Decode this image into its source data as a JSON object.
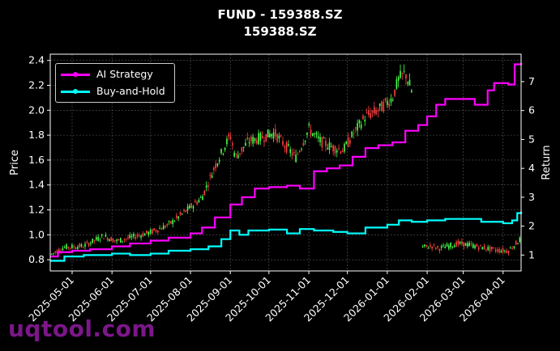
{
  "title": "FUND - 159388.SZ",
  "subtitle": "159388.SZ",
  "watermark": "uqtool.com",
  "colors": {
    "background": "#000000",
    "up_candle": "#4cff4c",
    "down_candle": "#ff4040",
    "ai_strategy": "#ff00ff",
    "buy_and_hold": "#00ffff",
    "grid": "#555555"
  },
  "chart_data": {
    "type": "line",
    "ylabel_left": "Price",
    "ylabel_right": "Return",
    "left_ylim": [
      0.71,
      2.45
    ],
    "right_ylim": [
      0.45,
      7.95
    ],
    "left_ticks": [
      "0.8",
      "1.0",
      "1.2",
      "1.4",
      "1.6",
      "1.8",
      "2.0",
      "2.2",
      "2.4"
    ],
    "right_ticks": [
      "1",
      "2",
      "3",
      "4",
      "5",
      "6",
      "7"
    ],
    "x_ticks": [
      "2025-05-01",
      "2025-06-01",
      "2025-07-01",
      "2025-08-01",
      "2025-09-01",
      "2025-10-01",
      "2025-11-01",
      "2025-12-01",
      "2026-01-01",
      "2026-02-01",
      "2026-03-01",
      "2026-04-01"
    ],
    "x_range": [
      "2025-04-14",
      "2026-04-15"
    ],
    "grid": true,
    "legend_position": "top-left",
    "series": [
      {
        "name": "AI Strategy",
        "color": "#ff00ff",
        "axis": "right",
        "points": [
          [
            "2025-04-14",
            0.95
          ],
          [
            "2025-04-20",
            1.1
          ],
          [
            "2025-05-01",
            1.15
          ],
          [
            "2025-05-15",
            1.2
          ],
          [
            "2025-06-01",
            1.3
          ],
          [
            "2025-06-15",
            1.4
          ],
          [
            "2025-07-01",
            1.5
          ],
          [
            "2025-07-15",
            1.6
          ],
          [
            "2025-08-01",
            1.75
          ],
          [
            "2025-08-10",
            1.95
          ],
          [
            "2025-08-20",
            2.3
          ],
          [
            "2025-09-01",
            2.75
          ],
          [
            "2025-09-10",
            3.0
          ],
          [
            "2025-09-20",
            3.3
          ],
          [
            "2025-10-01",
            3.35
          ],
          [
            "2025-10-15",
            3.4
          ],
          [
            "2025-10-25",
            3.3
          ],
          [
            "2025-11-05",
            3.9
          ],
          [
            "2025-11-15",
            4.0
          ],
          [
            "2025-11-25",
            4.1
          ],
          [
            "2025-12-05",
            4.4
          ],
          [
            "2025-12-15",
            4.7
          ],
          [
            "2025-12-25",
            4.8
          ],
          [
            "2026-01-05",
            4.9
          ],
          [
            "2026-01-15",
            5.3
          ],
          [
            "2026-01-25",
            5.5
          ],
          [
            "2026-02-01",
            5.8
          ],
          [
            "2026-02-08",
            6.2
          ],
          [
            "2026-02-15",
            6.4
          ],
          [
            "2026-03-01",
            6.4
          ],
          [
            "2026-03-10",
            6.2
          ],
          [
            "2026-03-20",
            6.7
          ],
          [
            "2026-03-25",
            6.95
          ],
          [
            "2026-04-05",
            6.9
          ],
          [
            "2026-04-10",
            7.6
          ],
          [
            "2026-04-15",
            7.65
          ]
        ]
      },
      {
        "name": "Buy-and-Hold",
        "color": "#00ffff",
        "axis": "right",
        "points": [
          [
            "2025-04-14",
            0.8
          ],
          [
            "2025-04-25",
            0.95
          ],
          [
            "2025-05-10",
            1.0
          ],
          [
            "2025-06-01",
            1.05
          ],
          [
            "2025-06-15",
            1.0
          ],
          [
            "2025-07-01",
            1.05
          ],
          [
            "2025-07-15",
            1.15
          ],
          [
            "2025-08-01",
            1.2
          ],
          [
            "2025-08-15",
            1.3
          ],
          [
            "2025-08-25",
            1.55
          ],
          [
            "2025-09-01",
            1.85
          ],
          [
            "2025-09-08",
            1.7
          ],
          [
            "2025-09-15",
            1.85
          ],
          [
            "2025-10-01",
            1.88
          ],
          [
            "2025-10-15",
            1.75
          ],
          [
            "2025-10-25",
            1.9
          ],
          [
            "2025-11-05",
            1.85
          ],
          [
            "2025-11-20",
            1.8
          ],
          [
            "2025-12-01",
            1.75
          ],
          [
            "2025-12-15",
            1.95
          ],
          [
            "2026-01-01",
            2.05
          ],
          [
            "2026-01-10",
            2.2
          ],
          [
            "2026-01-20",
            2.15
          ],
          [
            "2026-02-01",
            2.2
          ],
          [
            "2026-02-15",
            2.25
          ],
          [
            "2026-03-01",
            2.25
          ],
          [
            "2026-03-15",
            2.15
          ],
          [
            "2026-04-01",
            2.1
          ],
          [
            "2026-04-08",
            2.2
          ],
          [
            "2026-04-12",
            2.45
          ],
          [
            "2026-04-15",
            2.5
          ]
        ]
      },
      {
        "name": "Price",
        "axis": "left",
        "style": "candlestick",
        "points": [
          [
            "2025-04-14",
            0.84
          ],
          [
            "2025-04-25",
            0.9
          ],
          [
            "2025-05-10",
            0.91
          ],
          [
            "2025-05-25",
            0.99
          ],
          [
            "2025-06-05",
            0.95
          ],
          [
            "2025-06-20",
            0.99
          ],
          [
            "2025-07-01",
            1.02
          ],
          [
            "2025-07-15",
            1.08
          ],
          [
            "2025-08-01",
            1.22
          ],
          [
            "2025-08-10",
            1.3
          ],
          [
            "2025-08-20",
            1.55
          ],
          [
            "2025-09-01",
            1.8
          ],
          [
            "2025-09-05",
            1.62
          ],
          [
            "2025-09-15",
            1.75
          ],
          [
            "2025-09-25",
            1.78
          ],
          [
            "2025-10-05",
            1.82
          ],
          [
            "2025-10-15",
            1.7
          ],
          [
            "2025-10-22",
            1.62
          ],
          [
            "2025-11-01",
            1.85
          ],
          [
            "2025-11-10",
            1.75
          ],
          [
            "2025-11-20",
            1.7
          ],
          [
            "2025-11-28",
            1.68
          ],
          [
            "2025-12-05",
            1.8
          ],
          [
            "2025-12-15",
            1.95
          ],
          [
            "2025-12-25",
            2.0
          ],
          [
            "2026-01-05",
            2.1
          ],
          [
            "2026-01-10",
            2.25
          ],
          [
            "2026-01-15",
            2.3
          ],
          [
            "2026-01-20",
            2.15
          ],
          [
            "2026-01-28",
            0.9
          ],
          [
            "2026-02-05",
            0.91
          ],
          [
            "2026-02-10",
            0.89
          ],
          [
            "2026-02-25",
            0.93
          ],
          [
            "2026-03-05",
            0.92
          ],
          [
            "2026-03-15",
            0.9
          ],
          [
            "2026-03-25",
            0.88
          ],
          [
            "2026-04-05",
            0.87
          ],
          [
            "2026-04-10",
            0.92
          ],
          [
            "2026-04-15",
            0.97
          ]
        ]
      }
    ]
  }
}
